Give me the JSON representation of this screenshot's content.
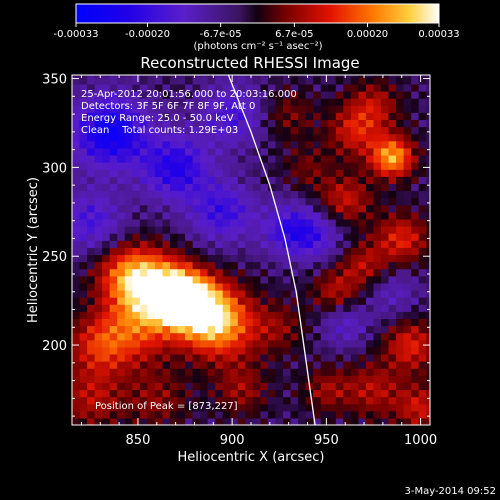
{
  "chart_data": {
    "type": "heatmap",
    "title": "Reconstructed RHESSI Image",
    "xlabel": "Heliocentric X (arcsec)",
    "ylabel": "Heliocentric Y (arcsec)",
    "xlim": [
      815,
      1005
    ],
    "ylim": [
      155,
      352
    ],
    "x_ticks": [
      850,
      900,
      950,
      1000
    ],
    "y_ticks": [
      200,
      250,
      300,
      350
    ],
    "x_tick_labels": [
      "850",
      "900",
      "950",
      "1000"
    ],
    "y_tick_labels": [
      "200",
      "250",
      "300",
      "350"
    ],
    "colorbar": {
      "min": -0.00033,
      "max": 0.00033,
      "ticks": [
        -0.00033,
        -0.0002,
        -6.7e-05,
        6.7e-05,
        0.0002,
        0.00033
      ],
      "tick_labels": [
        "-0.00033",
        "-0.00020",
        "-6.7e-05",
        "6.7e-05",
        "0.00020",
        "0.00033"
      ],
      "unit_label": "(photons cm⁻² s⁻¹ asec⁻²)"
    },
    "annotations": {
      "time_range": "25-Apr-2012 20:01:56.000 to 20:03:16.000",
      "detectors": "Detectors: 3F 5F 6F 7F 8F 9F, Att 0",
      "energy": "Energy Range: 25.0 - 50.0 keV",
      "clean": "Clean    Total counts: 1.29E+03",
      "peak": "Position of Peak = [873,227]"
    },
    "limb": [
      [
        898,
        352
      ],
      [
        910,
        320
      ],
      [
        920,
        290
      ],
      [
        928,
        260
      ],
      [
        934,
        230
      ],
      [
        938,
        200
      ],
      [
        942,
        170
      ],
      [
        944,
        155
      ]
    ],
    "peak": [
      873,
      227
    ],
    "blobs": [
      {
        "x": 873,
        "y": 227,
        "amp": 0.00033,
        "r": 10
      },
      {
        "x": 860,
        "y": 232,
        "amp": 0.00026,
        "r": 13
      },
      {
        "x": 885,
        "y": 220,
        "amp": 0.00024,
        "r": 12
      },
      {
        "x": 845,
        "y": 240,
        "amp": 0.0002,
        "r": 12
      },
      {
        "x": 895,
        "y": 210,
        "amp": 0.0002,
        "r": 14
      },
      {
        "x": 850,
        "y": 210,
        "amp": 0.00016,
        "r": 14
      },
      {
        "x": 830,
        "y": 200,
        "amp": 0.00016,
        "r": 12
      },
      {
        "x": 825,
        "y": 170,
        "amp": 0.00012,
        "r": 12
      },
      {
        "x": 860,
        "y": 170,
        "amp": 9e-05,
        "r": 12
      },
      {
        "x": 905,
        "y": 175,
        "amp": 0.0001,
        "r": 10
      },
      {
        "x": 985,
        "y": 306,
        "amp": 0.00028,
        "r": 8
      },
      {
        "x": 965,
        "y": 320,
        "amp": 0.00014,
        "r": 10
      },
      {
        "x": 960,
        "y": 282,
        "amp": 0.00014,
        "r": 10
      },
      {
        "x": 975,
        "y": 335,
        "amp": 0.00012,
        "r": 10
      },
      {
        "x": 990,
        "y": 260,
        "amp": 0.00016,
        "r": 10
      },
      {
        "x": 970,
        "y": 245,
        "amp": 0.00012,
        "r": 9
      },
      {
        "x": 955,
        "y": 230,
        "amp": 0.00012,
        "r": 9
      },
      {
        "x": 995,
        "y": 200,
        "amp": 0.00016,
        "r": 10
      },
      {
        "x": 975,
        "y": 175,
        "amp": 0.00012,
        "r": 11
      },
      {
        "x": 1000,
        "y": 165,
        "amp": 0.00014,
        "r": 9
      },
      {
        "x": 950,
        "y": 175,
        "amp": 0.0001,
        "r": 9
      },
      {
        "x": 925,
        "y": 210,
        "amp": 8e-05,
        "r": 10
      },
      {
        "x": 930,
        "y": 330,
        "amp": 8e-05,
        "r": 10
      },
      {
        "x": 940,
        "y": 300,
        "amp": 7e-05,
        "r": 9
      },
      {
        "x": 835,
        "y": 320,
        "amp": -0.00026,
        "r": 14
      },
      {
        "x": 870,
        "y": 300,
        "amp": -0.0002,
        "r": 13
      },
      {
        "x": 900,
        "y": 330,
        "amp": -0.00014,
        "r": 12
      },
      {
        "x": 895,
        "y": 275,
        "amp": -0.00016,
        "r": 12
      },
      {
        "x": 930,
        "y": 265,
        "amp": -0.00016,
        "r": 10
      },
      {
        "x": 945,
        "y": 262,
        "amp": -0.00012,
        "r": 10
      },
      {
        "x": 825,
        "y": 270,
        "amp": -0.00014,
        "r": 12
      },
      {
        "x": 960,
        "y": 212,
        "amp": -0.0001,
        "r": 9
      },
      {
        "x": 985,
        "y": 230,
        "amp": -8e-05,
        "r": 10
      }
    ],
    "background": -3e-05,
    "pixel_size": 4
  },
  "footer": {
    "date": "3-May-2014 09:52"
  }
}
